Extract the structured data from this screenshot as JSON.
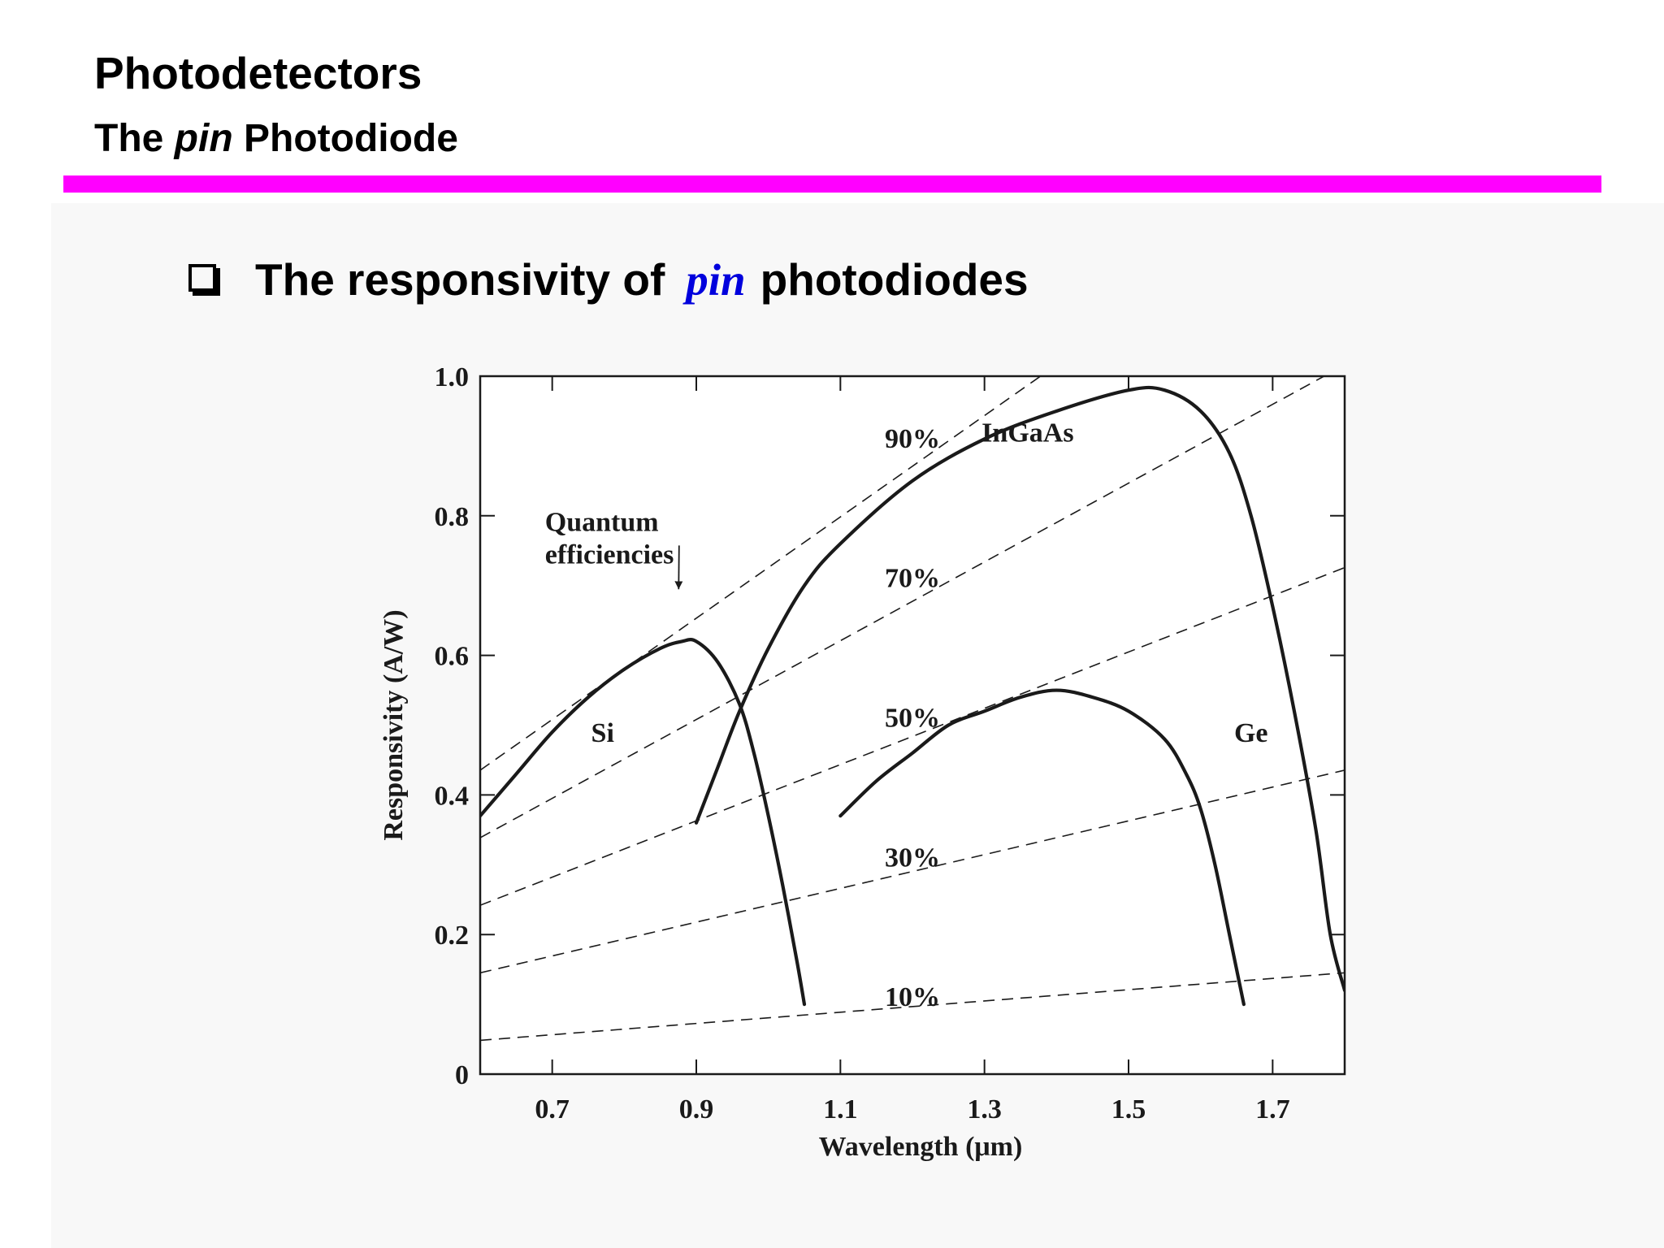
{
  "slide": {
    "title": "Photodetectors",
    "subtitle_pre": "The ",
    "subtitle_em": "pin",
    "subtitle_post": " Photodiode",
    "bullet_pre": "The responsivity of",
    "bullet_em": "pin",
    "bullet_post": "photodiodes",
    "accent_color": "#ff00ff",
    "pin_color": "#0000dd"
  },
  "chart_data": {
    "type": "line",
    "xlabel": "Wavelength (μm)",
    "ylabel": "Responsivity (A/W)",
    "xlim": [
      0.6,
      1.8
    ],
    "ylim": [
      0,
      1.0
    ],
    "xticks": [
      0.7,
      0.9,
      1.1,
      1.3,
      1.5,
      1.7
    ],
    "xtick_labels": [
      "0.7",
      "0.9",
      "1.1",
      "1.3",
      "1.5",
      "1.7"
    ],
    "yticks": [
      0,
      0.2,
      0.4,
      0.6,
      0.8,
      1.0
    ],
    "ytick_labels": [
      "0",
      "0.2",
      "0.4",
      "0.6",
      "0.8",
      "1.0"
    ],
    "quantum_efficiency_lines": [
      {
        "label": "10%",
        "efficiency": 0.1,
        "label_at": [
          1.2,
          0.1
        ]
      },
      {
        "label": "30%",
        "efficiency": 0.3,
        "label_at": [
          1.2,
          0.3
        ]
      },
      {
        "label": "50%",
        "efficiency": 0.5,
        "label_at": [
          1.2,
          0.5
        ]
      },
      {
        "label": "70%",
        "efficiency": 0.7,
        "label_at": [
          1.2,
          0.7
        ]
      },
      {
        "label": "90%",
        "efficiency": 0.9,
        "label_at": [
          1.2,
          0.9
        ]
      }
    ],
    "series": [
      {
        "name": "Si",
        "label_at": [
          0.77,
          0.49
        ],
        "points": [
          [
            0.6,
            0.37
          ],
          [
            0.65,
            0.43
          ],
          [
            0.7,
            0.49
          ],
          [
            0.75,
            0.54
          ],
          [
            0.8,
            0.58
          ],
          [
            0.85,
            0.61
          ],
          [
            0.88,
            0.62
          ],
          [
            0.9,
            0.62
          ],
          [
            0.93,
            0.59
          ],
          [
            0.96,
            0.53
          ],
          [
            0.98,
            0.46
          ],
          [
            1.0,
            0.37
          ],
          [
            1.02,
            0.27
          ],
          [
            1.04,
            0.16
          ],
          [
            1.05,
            0.1
          ]
        ]
      },
      {
        "name": "InGaAs",
        "label_at": [
          1.36,
          0.92
        ],
        "points": [
          [
            0.9,
            0.36
          ],
          [
            0.93,
            0.44
          ],
          [
            0.96,
            0.52
          ],
          [
            1.0,
            0.61
          ],
          [
            1.05,
            0.7
          ],
          [
            1.1,
            0.76
          ],
          [
            1.2,
            0.85
          ],
          [
            1.3,
            0.91
          ],
          [
            1.4,
            0.95
          ],
          [
            1.5,
            0.98
          ],
          [
            1.55,
            0.98
          ],
          [
            1.6,
            0.95
          ],
          [
            1.64,
            0.89
          ],
          [
            1.67,
            0.8
          ],
          [
            1.7,
            0.67
          ],
          [
            1.73,
            0.52
          ],
          [
            1.76,
            0.35
          ],
          [
            1.78,
            0.2
          ],
          [
            1.8,
            0.12
          ]
        ]
      },
      {
        "name": "Ge",
        "label_at": [
          1.67,
          0.49
        ],
        "points": [
          [
            1.1,
            0.37
          ],
          [
            1.15,
            0.42
          ],
          [
            1.2,
            0.46
          ],
          [
            1.25,
            0.5
          ],
          [
            1.3,
            0.52
          ],
          [
            1.35,
            0.54
          ],
          [
            1.4,
            0.55
          ],
          [
            1.45,
            0.54
          ],
          [
            1.5,
            0.52
          ],
          [
            1.55,
            0.48
          ],
          [
            1.58,
            0.43
          ],
          [
            1.6,
            0.38
          ],
          [
            1.62,
            0.3
          ],
          [
            1.64,
            0.2
          ],
          [
            1.66,
            0.1
          ]
        ]
      }
    ],
    "annotation": {
      "text_line1": "Quantum",
      "text_line2": "efficiencies",
      "label_at": [
        0.69,
        0.79
      ],
      "arrow_to": [
        0.88,
        0.69
      ]
    },
    "grid": false
  }
}
